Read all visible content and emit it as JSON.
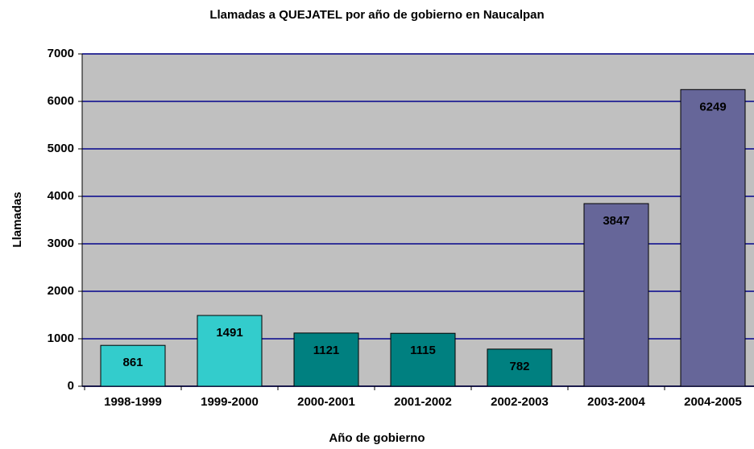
{
  "chart_data": {
    "type": "bar",
    "title": "Llamadas a QUEJATEL por año de gobierno  en Naucalpan",
    "xlabel": "Año de gobierno",
    "ylabel": "Llamadas",
    "categories": [
      "1998-1999",
      "1999-2000",
      "2000-2001",
      "2001-2002",
      "2002-2003",
      "2003-2004",
      "2004-2005"
    ],
    "values": [
      861,
      1491,
      1121,
      1115,
      782,
      3847,
      6249
    ],
    "colors": [
      "#33cccc",
      "#33cccc",
      "#008080",
      "#008080",
      "#008080",
      "#666699",
      "#666699"
    ],
    "ylim": [
      0,
      7000
    ],
    "yticks": [
      0,
      1000,
      2000,
      3000,
      4000,
      5000,
      6000,
      7000
    ],
    "grid": true
  }
}
